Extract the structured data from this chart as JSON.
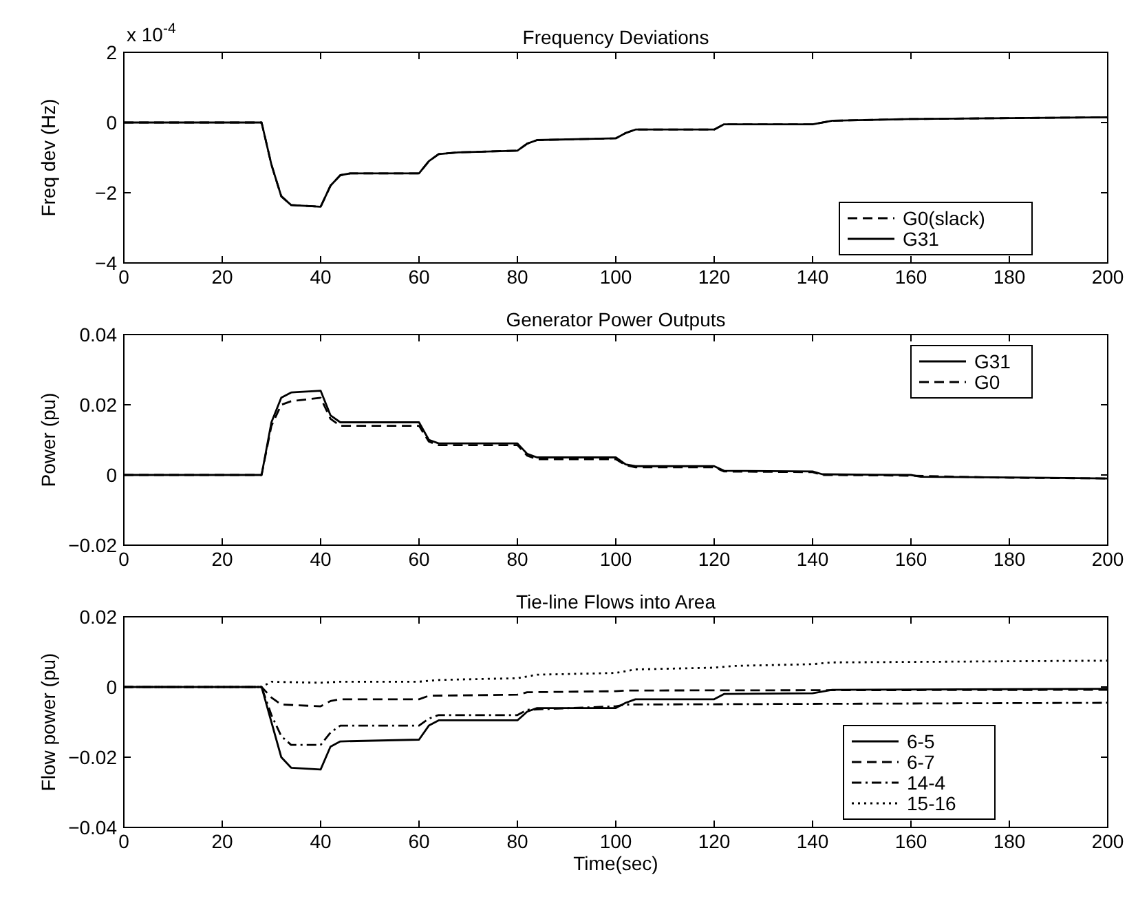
{
  "chart_data": [
    {
      "type": "line",
      "title": "Frequency Deviations",
      "ylabel": "Freq dev (Hz)",
      "xlim": [
        0,
        200
      ],
      "xticks": [
        0,
        20,
        40,
        60,
        80,
        100,
        120,
        140,
        160,
        180,
        200
      ],
      "ylim": [
        -4,
        2
      ],
      "yticks": [
        -4,
        -2,
        0,
        2
      ],
      "legend": "lower right",
      "annotations": [
        "x 10$^{-4}$"
      ],
      "series": [
        {
          "name": "G0(slack)",
          "color": "#000000",
          "line_style": "dashed",
          "x": [
            0,
            28,
            30,
            32,
            34,
            40,
            42,
            44,
            46,
            60,
            62,
            64,
            68,
            80,
            82,
            84,
            100,
            102,
            104,
            120,
            122,
            140,
            144,
            160,
            200
          ],
          "values": [
            0,
            0,
            -1.2,
            -2.1,
            -2.35,
            -2.4,
            -1.8,
            -1.5,
            -1.45,
            -1.45,
            -1.1,
            -0.9,
            -0.85,
            -0.8,
            -0.6,
            -0.5,
            -0.45,
            -0.3,
            -0.2,
            -0.2,
            -0.05,
            -0.05,
            0.05,
            0.1,
            0.15
          ]
        },
        {
          "name": "G31",
          "color": "#000000",
          "line_style": "solid",
          "x": [
            0,
            28,
            30,
            32,
            34,
            40,
            42,
            44,
            46,
            60,
            62,
            64,
            68,
            80,
            82,
            84,
            100,
            102,
            104,
            120,
            122,
            140,
            144,
            160,
            200
          ],
          "values": [
            0,
            0,
            -1.2,
            -2.1,
            -2.35,
            -2.4,
            -1.8,
            -1.5,
            -1.45,
            -1.45,
            -1.1,
            -0.9,
            -0.85,
            -0.8,
            -0.6,
            -0.5,
            -0.45,
            -0.3,
            -0.2,
            -0.2,
            -0.05,
            -0.05,
            0.05,
            0.1,
            0.15
          ]
        }
      ]
    },
    {
      "type": "line",
      "title": "Generator Power Outputs",
      "ylabel": "Power (pu)",
      "xlim": [
        0,
        200
      ],
      "xticks": [
        0,
        20,
        40,
        60,
        80,
        100,
        120,
        140,
        160,
        180,
        200
      ],
      "ylim": [
        -0.02,
        0.04
      ],
      "yticks": [
        -0.02,
        0,
        0.02,
        0.04
      ],
      "legend": "upper right",
      "series": [
        {
          "name": "G31",
          "color": "#000000",
          "line_style": "solid",
          "x": [
            0,
            28,
            30,
            32,
            34,
            40,
            42,
            44,
            60,
            62,
            64,
            80,
            82,
            84,
            100,
            102,
            104,
            120,
            122,
            140,
            142,
            160,
            162,
            180,
            200
          ],
          "values": [
            0,
            0,
            0.015,
            0.022,
            0.0235,
            0.024,
            0.017,
            0.015,
            0.015,
            0.01,
            0.009,
            0.009,
            0.006,
            0.005,
            0.005,
            0.003,
            0.0025,
            0.0025,
            0.0012,
            0.001,
            0.0002,
            0,
            -0.0005,
            -0.0007,
            -0.001
          ]
        },
        {
          "name": "G0",
          "color": "#000000",
          "line_style": "dashed",
          "x": [
            0,
            28,
            30,
            32,
            34,
            40,
            42,
            44,
            60,
            62,
            64,
            80,
            82,
            84,
            100,
            102,
            104,
            120,
            122,
            140,
            142,
            160,
            180,
            200
          ],
          "values": [
            0,
            0,
            0.014,
            0.02,
            0.021,
            0.022,
            0.016,
            0.014,
            0.014,
            0.0095,
            0.0085,
            0.0085,
            0.0055,
            0.0045,
            0.0045,
            0.0028,
            0.0022,
            0.0022,
            0.001,
            0.0008,
            0,
            -0.0002,
            -0.0008,
            -0.001
          ]
        }
      ]
    },
    {
      "type": "line",
      "title": "Tie-line Flows into Area",
      "xlabel": "Time(sec)",
      "ylabel": "Flow power (pu)",
      "xlim": [
        0,
        200
      ],
      "xticks": [
        0,
        20,
        40,
        60,
        80,
        100,
        120,
        140,
        160,
        180,
        200
      ],
      "ylim": [
        -0.04,
        0.02
      ],
      "yticks": [
        -0.04,
        -0.02,
        0,
        0.02
      ],
      "legend": "lower right",
      "series": [
        {
          "name": "6-5",
          "color": "#000000",
          "line_style": "solid",
          "x": [
            0,
            28,
            30,
            32,
            34,
            40,
            42,
            44,
            60,
            62,
            64,
            80,
            82,
            84,
            100,
            102,
            104,
            120,
            122,
            140,
            144,
            200
          ],
          "values": [
            0,
            0,
            -0.01,
            -0.02,
            -0.023,
            -0.0235,
            -0.017,
            -0.0155,
            -0.015,
            -0.011,
            -0.0095,
            -0.0095,
            -0.007,
            -0.006,
            -0.006,
            -0.0045,
            -0.0035,
            -0.0035,
            -0.002,
            -0.0018,
            -0.0008,
            -0.0005
          ]
        },
        {
          "name": "6-7",
          "color": "#000000",
          "line_style": "dashed",
          "x": [
            0,
            28,
            30,
            32,
            40,
            42,
            44,
            60,
            62,
            80,
            82,
            100,
            102,
            200
          ],
          "values": [
            0,
            0,
            -0.003,
            -0.005,
            -0.0055,
            -0.004,
            -0.0035,
            -0.0035,
            -0.0025,
            -0.0022,
            -0.0015,
            -0.0012,
            -0.001,
            -0.0008
          ]
        },
        {
          "name": "14-4",
          "color": "#000000",
          "line_style": "dashdot",
          "x": [
            0,
            28,
            30,
            32,
            34,
            40,
            42,
            44,
            60,
            62,
            64,
            80,
            82,
            100,
            102,
            200
          ],
          "values": [
            0,
            0,
            -0.008,
            -0.014,
            -0.0165,
            -0.0165,
            -0.013,
            -0.011,
            -0.011,
            -0.009,
            -0.008,
            -0.008,
            -0.0065,
            -0.0055,
            -0.005,
            -0.0045
          ]
        },
        {
          "name": "15-16",
          "color": "#000000",
          "line_style": "dotted",
          "x": [
            0,
            28,
            30,
            40,
            44,
            60,
            64,
            80,
            84,
            100,
            104,
            120,
            124,
            140,
            144,
            200
          ],
          "values": [
            0,
            0,
            0.0015,
            0.0012,
            0.0015,
            0.0015,
            0.002,
            0.0025,
            0.0035,
            0.004,
            0.005,
            0.0055,
            0.006,
            0.0065,
            0.007,
            0.0075
          ]
        }
      ]
    }
  ]
}
